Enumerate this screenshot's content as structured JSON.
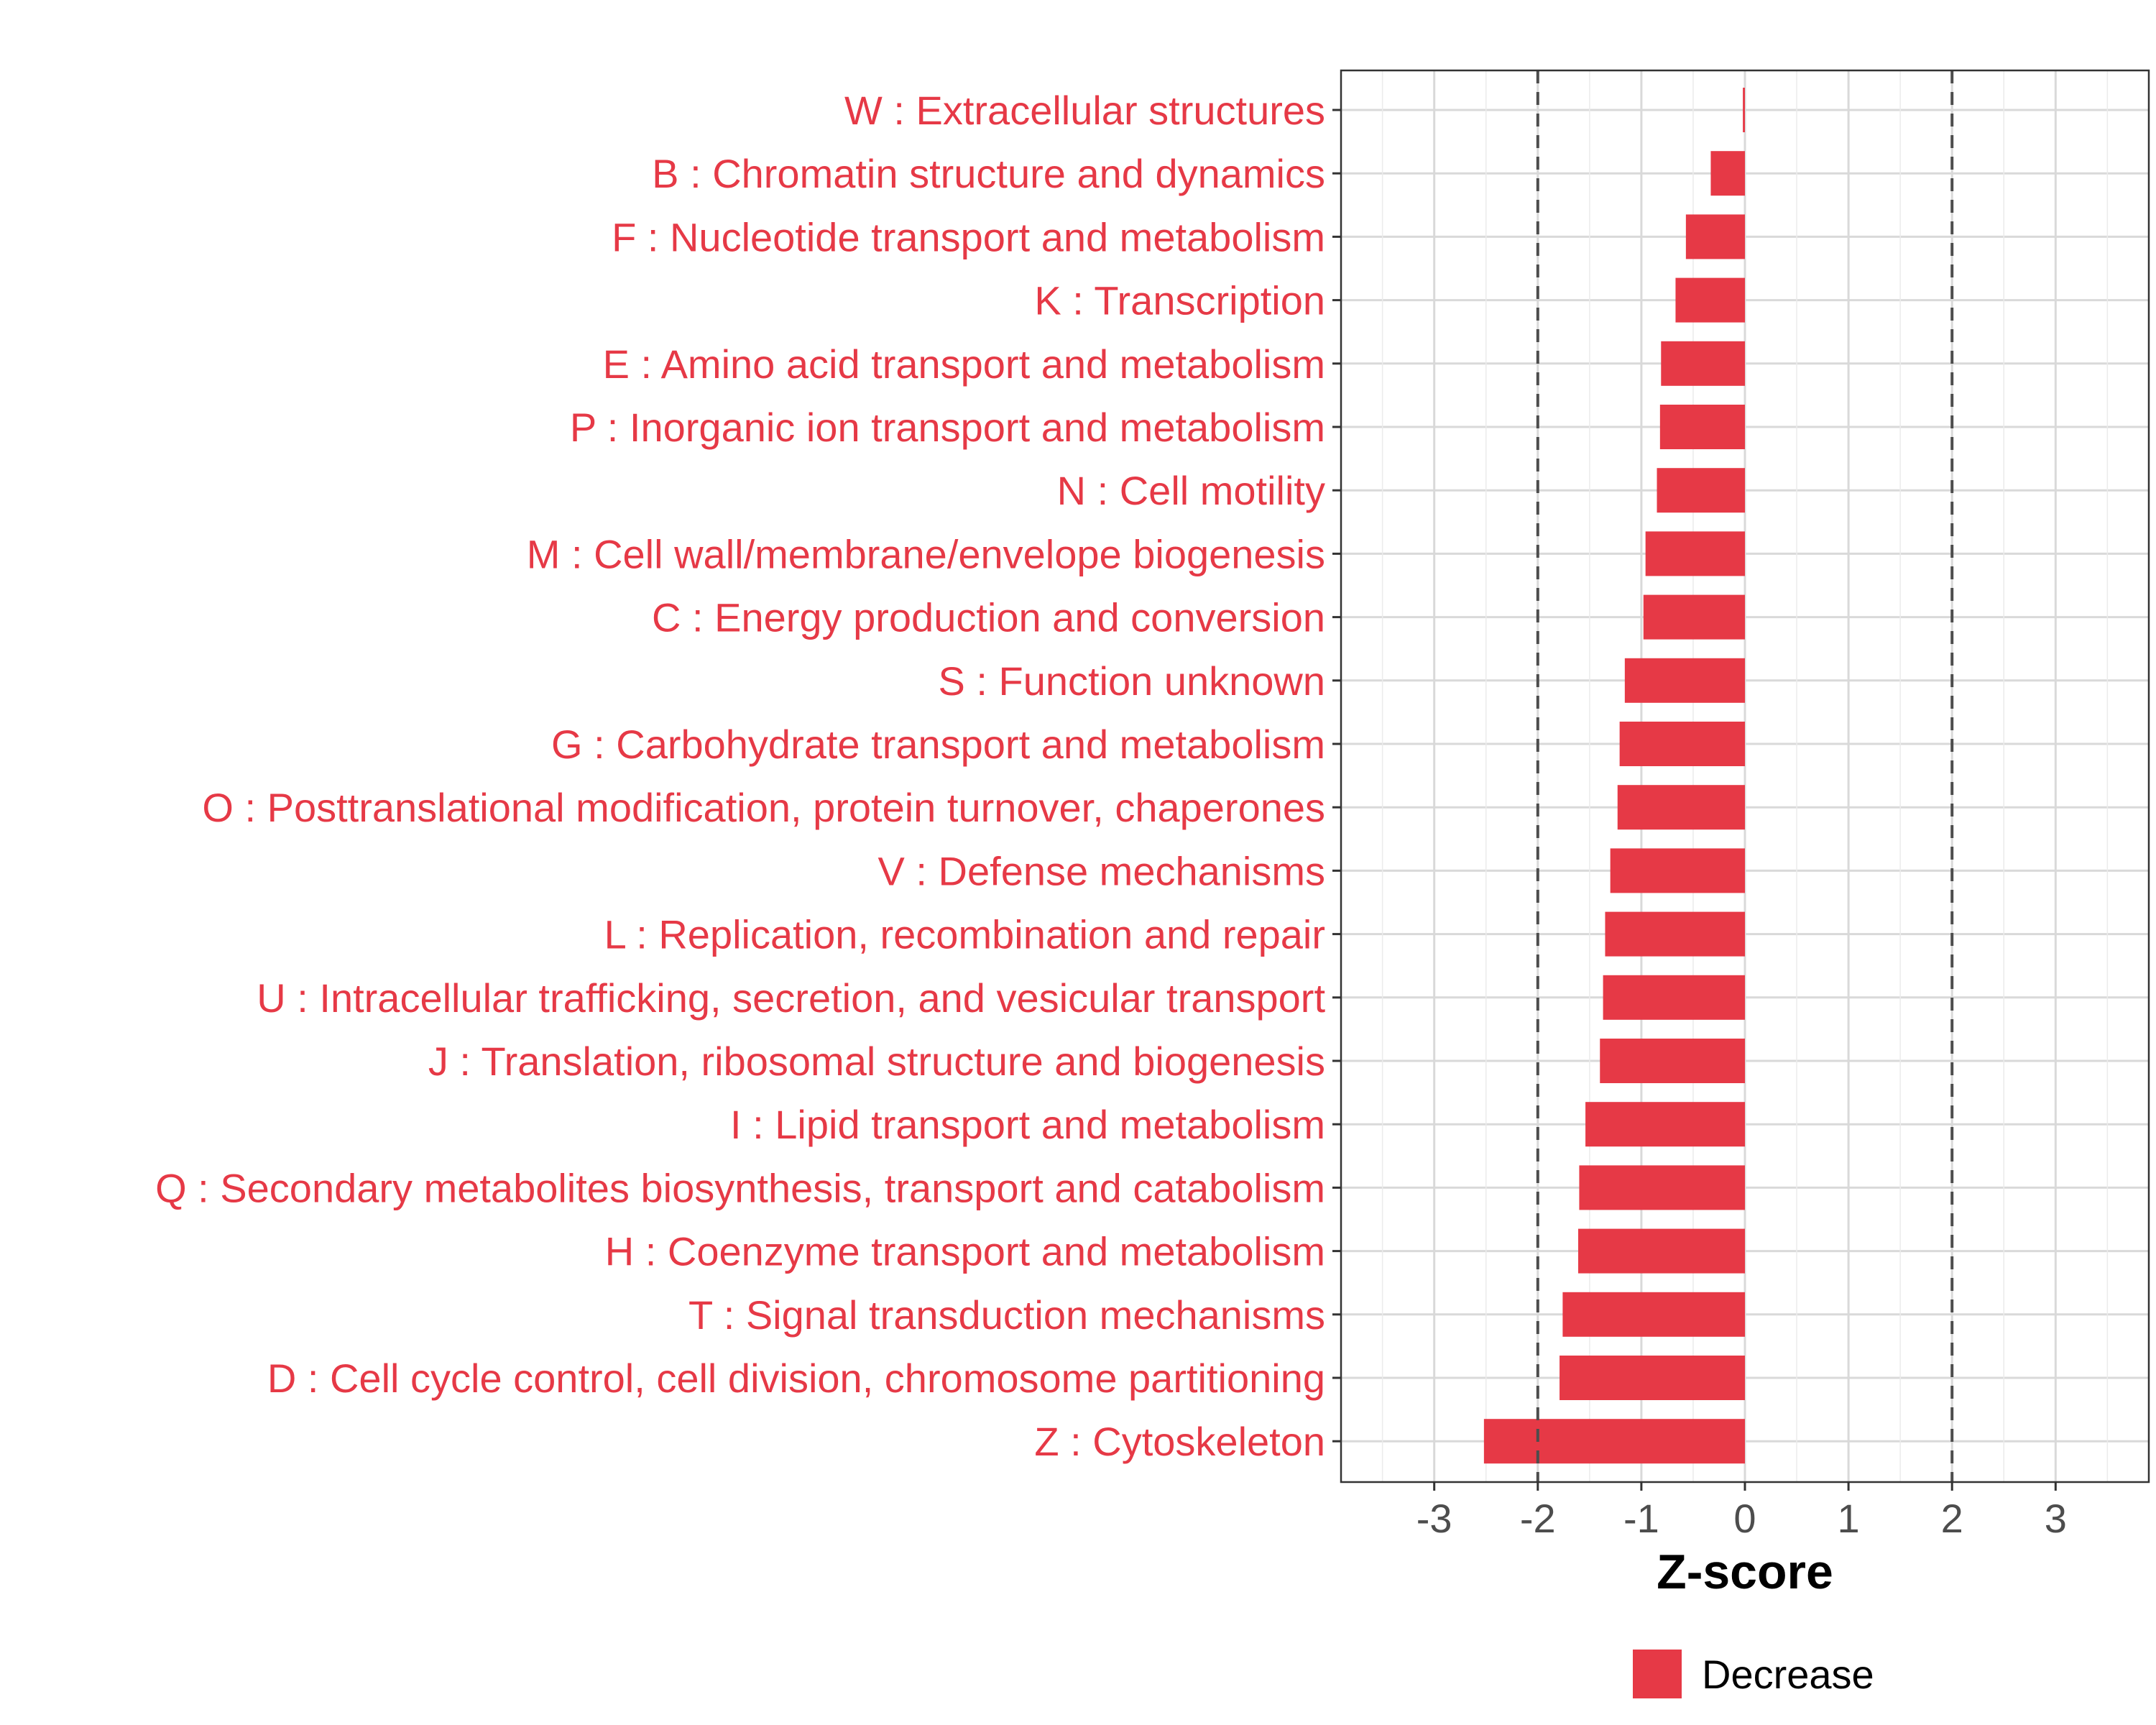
{
  "chart_data": {
    "type": "bar",
    "orientation": "horizontal",
    "categories": [
      "W : Extracellular structures",
      "B : Chromatin structure and dynamics",
      "F : Nucleotide transport and metabolism",
      "K : Transcription",
      "E : Amino acid transport and metabolism",
      "P : Inorganic ion transport and metabolism",
      "N : Cell motility",
      "M : Cell wall/membrane/envelope biogenesis",
      "C : Energy production and conversion",
      "S : Function unknown",
      "G : Carbohydrate transport and metabolism",
      "O : Posttranslational modification, protein turnover, chaperones",
      "V : Defense mechanisms",
      "L : Replication, recombination and repair",
      "U : Intracellular trafficking, secretion, and vesicular transport",
      "J : Translation, ribosomal structure and biogenesis",
      "I : Lipid transport and metabolism",
      "Q : Secondary metabolites biosynthesis, transport and catabolism",
      "H : Coenzyme transport and metabolism",
      "T : Signal transduction mechanisms",
      "D : Cell cycle control, cell division, chromosome partitioning",
      "Z : Cytoskeleton"
    ],
    "series": [
      {
        "name": "Decrease",
        "values": [
          -0.02,
          -0.33,
          -0.57,
          -0.67,
          -0.81,
          -0.82,
          -0.85,
          -0.96,
          -0.98,
          -1.16,
          -1.21,
          -1.23,
          -1.3,
          -1.35,
          -1.37,
          -1.4,
          -1.54,
          -1.6,
          -1.61,
          -1.76,
          -1.79,
          -2.52
        ]
      }
    ],
    "xlabel": "Z-score",
    "ylabel": "",
    "xlim": [
      -3.9,
      3.9
    ],
    "xticks": [
      "-3",
      "-2",
      "-1",
      "0",
      "1",
      "2",
      "3"
    ],
    "xtick_values": [
      -3,
      -2,
      -1,
      0,
      1,
      2,
      3
    ],
    "reference_lines": [
      -2,
      2
    ],
    "grid": true,
    "legend_position": "bottom",
    "colors": {
      "bar": "#e63946",
      "label": "#e63946",
      "reference_line": "#4d4d4d",
      "grid": "#d9d9d9",
      "frame": "#333333",
      "tick_text": "#4d4d4d"
    }
  }
}
